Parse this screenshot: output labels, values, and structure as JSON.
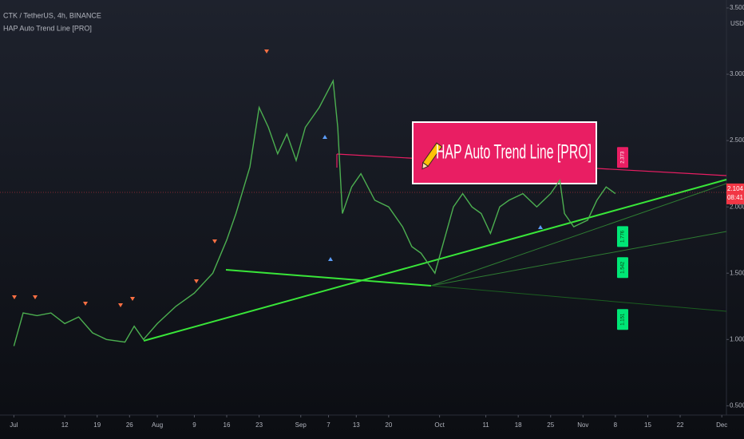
{
  "chart_data": {
    "type": "line",
    "title": "CTK / TetherUS, 4h, BINANCE",
    "subtitle": "HAP Auto Trend Line [PRO]",
    "banner": "HAP Auto Trend Line [PRO]",
    "y_unit": "USDT",
    "xlim": [
      -3,
      154
    ],
    "xticks": [
      {
        "value": 0,
        "label": "Jul"
      },
      {
        "value": 11,
        "label": "12"
      },
      {
        "value": 18,
        "label": "19"
      },
      {
        "value": 25,
        "label": "26"
      },
      {
        "value": 31,
        "label": "Aug"
      },
      {
        "value": 39,
        "label": "9"
      },
      {
        "value": 46,
        "label": "16"
      },
      {
        "value": 53,
        "label": "23"
      },
      {
        "value": 62,
        "label": "Sep"
      },
      {
        "value": 68,
        "label": "7"
      },
      {
        "value": 74,
        "label": "13"
      },
      {
        "value": 81,
        "label": "20"
      },
      {
        "value": 92,
        "label": "Oct"
      },
      {
        "value": 102,
        "label": "11"
      },
      {
        "value": 109,
        "label": "18"
      },
      {
        "value": 116,
        "label": "25"
      },
      {
        "value": 123,
        "label": "Nov"
      },
      {
        "value": 130,
        "label": "8"
      },
      {
        "value": 137,
        "label": "15"
      },
      {
        "value": 144,
        "label": "22"
      },
      {
        "value": 153,
        "label": "Dec"
      }
    ],
    "ylim": [
      0.43,
      3.56
    ],
    "yticks": [
      {
        "value": 0.5,
        "label": "0.500"
      },
      {
        "value": 1,
        "label": "1.000"
      },
      {
        "value": 1.5,
        "label": "1.500"
      },
      {
        "value": 2,
        "label": "2.000"
      },
      {
        "value": 2.5,
        "label": "2.500"
      },
      {
        "value": 3,
        "label": "3.000"
      },
      {
        "value": 3.5,
        "label": "3.500"
      }
    ],
    "series": [
      {
        "name": "CTK / TetherUS",
        "color": "#4caf50",
        "x": [
          0,
          2,
          5,
          8,
          11,
          14,
          17,
          20,
          24,
          26,
          28,
          31,
          35,
          39,
          43,
          46,
          48,
          51,
          53,
          55,
          57,
          59,
          61,
          63,
          66,
          69,
          70,
          71,
          73,
          75,
          78,
          81,
          84,
          86,
          88,
          90,
          91,
          93,
          95,
          97,
          99,
          101,
          103,
          105,
          107,
          110,
          113,
          116,
          118,
          119,
          121,
          124,
          126,
          128,
          130
        ],
        "values": [
          0.95,
          1.2,
          1.18,
          1.2,
          1.12,
          1.17,
          1.05,
          1.0,
          0.98,
          1.1,
          1.0,
          1.12,
          1.25,
          1.35,
          1.5,
          1.75,
          1.95,
          2.3,
          2.75,
          2.6,
          2.4,
          2.55,
          2.35,
          2.6,
          2.75,
          2.95,
          2.6,
          1.95,
          2.15,
          2.25,
          2.05,
          2.0,
          1.85,
          1.7,
          1.65,
          1.55,
          1.5,
          1.75,
          2.0,
          2.1,
          2.0,
          1.95,
          1.8,
          2.0,
          2.05,
          2.1,
          2.0,
          2.1,
          2.2,
          1.95,
          1.85,
          1.9,
          2.05,
          2.15,
          2.1
        ]
      }
    ],
    "last_price": {
      "value": 2.104,
      "label": "2.104",
      "countdown": "08:41",
      "color": "#f23645"
    },
    "levels": [
      {
        "value": 2.373,
        "color": "#e91e63"
      },
      {
        "value": 1.776,
        "color": "#00e676"
      },
      {
        "value": 1.542,
        "color": "#00e676"
      },
      {
        "value": 1.151,
        "color": "#00e676"
      }
    ],
    "grid": false
  }
}
